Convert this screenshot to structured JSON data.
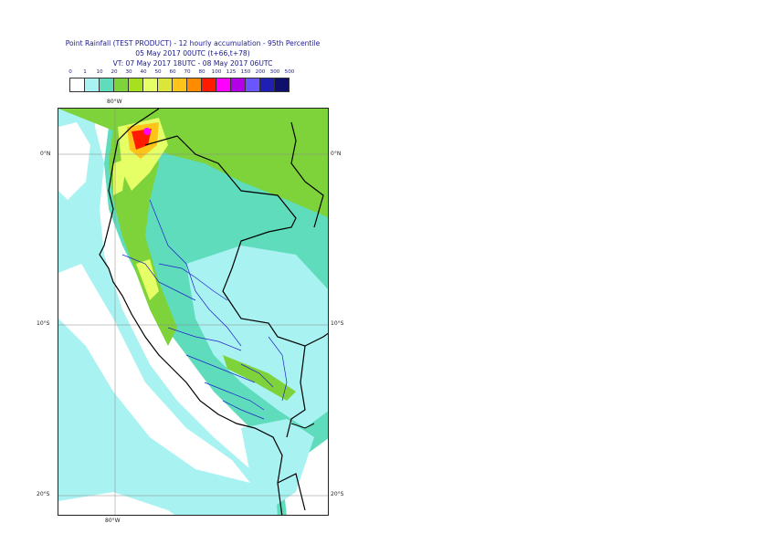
{
  "title": {
    "line1": "Point Rainfall (TEST PRODUCT) - 12 hourly accumulation - 95th Percentile",
    "line2": "05 May 2017 00UTC (t+66,t+78)",
    "line3": "VT: 07 May 2017 18UTC - 08 May 2017 06UTC"
  },
  "legend": {
    "ticks": [
      "0",
      "1",
      "10",
      "20",
      "30",
      "40",
      "50",
      "60",
      "70",
      "80",
      "100",
      "125",
      "150",
      "200",
      "300",
      "500"
    ],
    "colors": [
      "#ffffff",
      "#a8f2f2",
      "#5fdcbc",
      "#7ed23a",
      "#a6e01f",
      "#e6ff66",
      "#dce63a",
      "#ffc41a",
      "#ff8c00",
      "#ff1a00",
      "#ff00ff",
      "#b400e6",
      "#6a55ff",
      "#1f1fb4",
      "#0f0f6e"
    ]
  },
  "axes": {
    "lon_top": "80°W",
    "lon_bottom": "80°W",
    "lat_left": [
      "0°N",
      "10°S",
      "20°S"
    ],
    "lat_right": [
      "0°N",
      "10°S",
      "20°S"
    ]
  },
  "map_colors": {
    "light_cyan": "#a8f2f2",
    "teal": "#5fdcbc",
    "green": "#7ed23a",
    "yellow": "#e6ff66",
    "orange": "#ffc41a",
    "red": "#ff1a00",
    "magenta": "#ff00ff",
    "country_border": "#000000",
    "admin_border": "#2020c8"
  }
}
